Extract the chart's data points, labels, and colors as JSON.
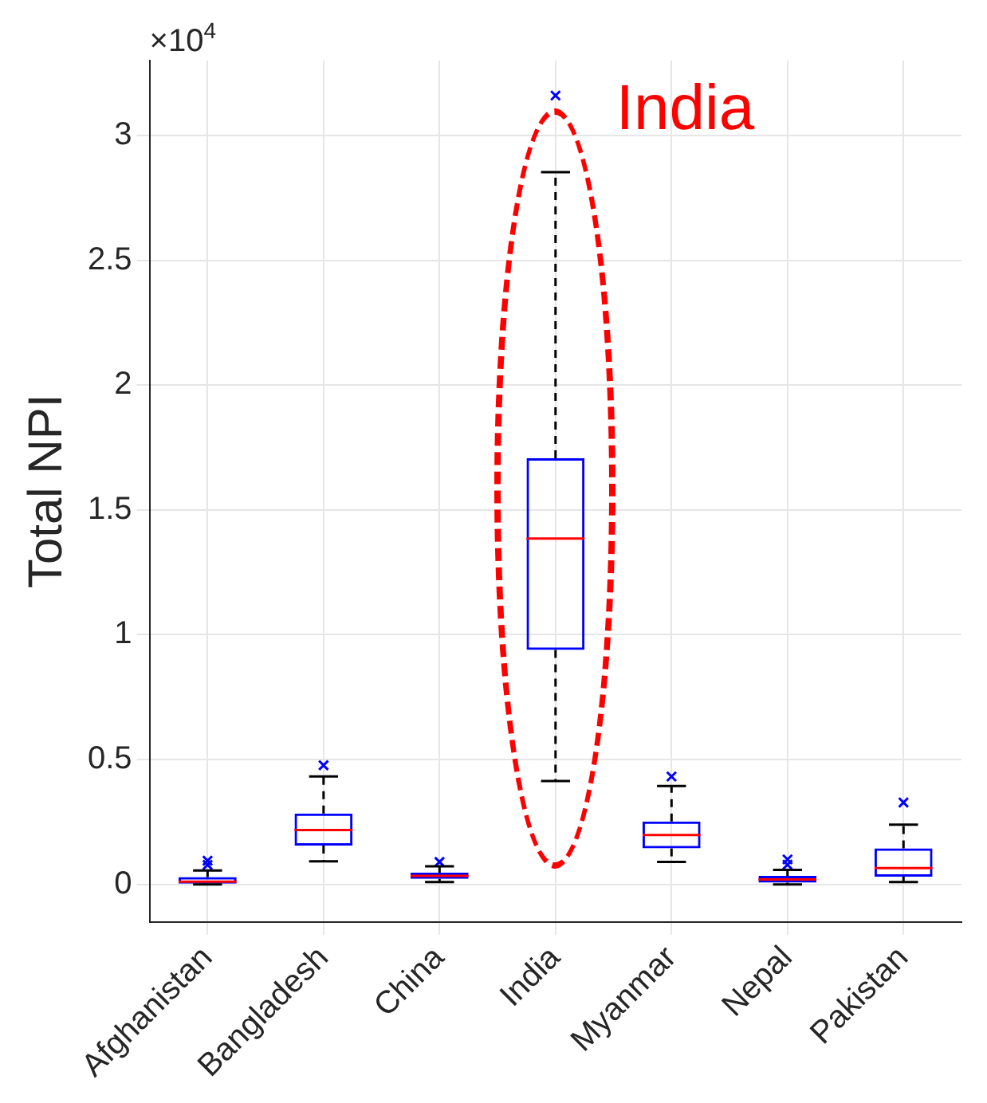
{
  "chart_data": {
    "type": "box",
    "ylabel": "Total NPI",
    "categories": [
      "Afghanistan",
      "Bangladesh",
      "China",
      "India",
      "Myanmar",
      "Nepal",
      "Pakistan"
    ],
    "series": [
      {
        "color": "#0000ff",
        "boxes": [
          {
            "low": 0.0,
            "q1": 0.0,
            "median": 0.011,
            "q3": 0.029,
            "high": 0.056,
            "outliers": [
              0.078,
              0.095
            ]
          },
          {
            "low": 0.092,
            "q1": 0.155,
            "median": 0.218,
            "q3": 0.284,
            "high": 0.432,
            "outliers": [
              0.477
            ]
          },
          {
            "low": 0.009,
            "q1": 0.022,
            "median": 0.034,
            "q3": 0.047,
            "high": 0.072,
            "outliers": [
              0.09
            ]
          },
          {
            "low": 0.414,
            "q1": 0.939,
            "median": 1.385,
            "q3": 1.707,
            "high": 2.853,
            "outliers": [
              3.16
            ]
          },
          {
            "low": 0.09,
            "q1": 0.144,
            "median": 0.198,
            "q3": 0.252,
            "high": 0.394,
            "outliers": [
              0.432
            ]
          },
          {
            "low": 0.0,
            "q1": 0.007,
            "median": 0.02,
            "q3": 0.034,
            "high": 0.058,
            "outliers": [
              0.079,
              0.1
            ]
          },
          {
            "low": 0.009,
            "q1": 0.031,
            "median": 0.065,
            "q3": 0.144,
            "high": 0.239,
            "outliers": [
              0.328
            ]
          }
        ]
      }
    ],
    "ylim": [
      -0.15,
      3.3
    ],
    "yticks": [
      0,
      0.5,
      1,
      1.5,
      2,
      2.5,
      3
    ],
    "grid": true,
    "marker": "cross",
    "annotations": [
      "×10$^{4}$",
      "India"
    ]
  }
}
